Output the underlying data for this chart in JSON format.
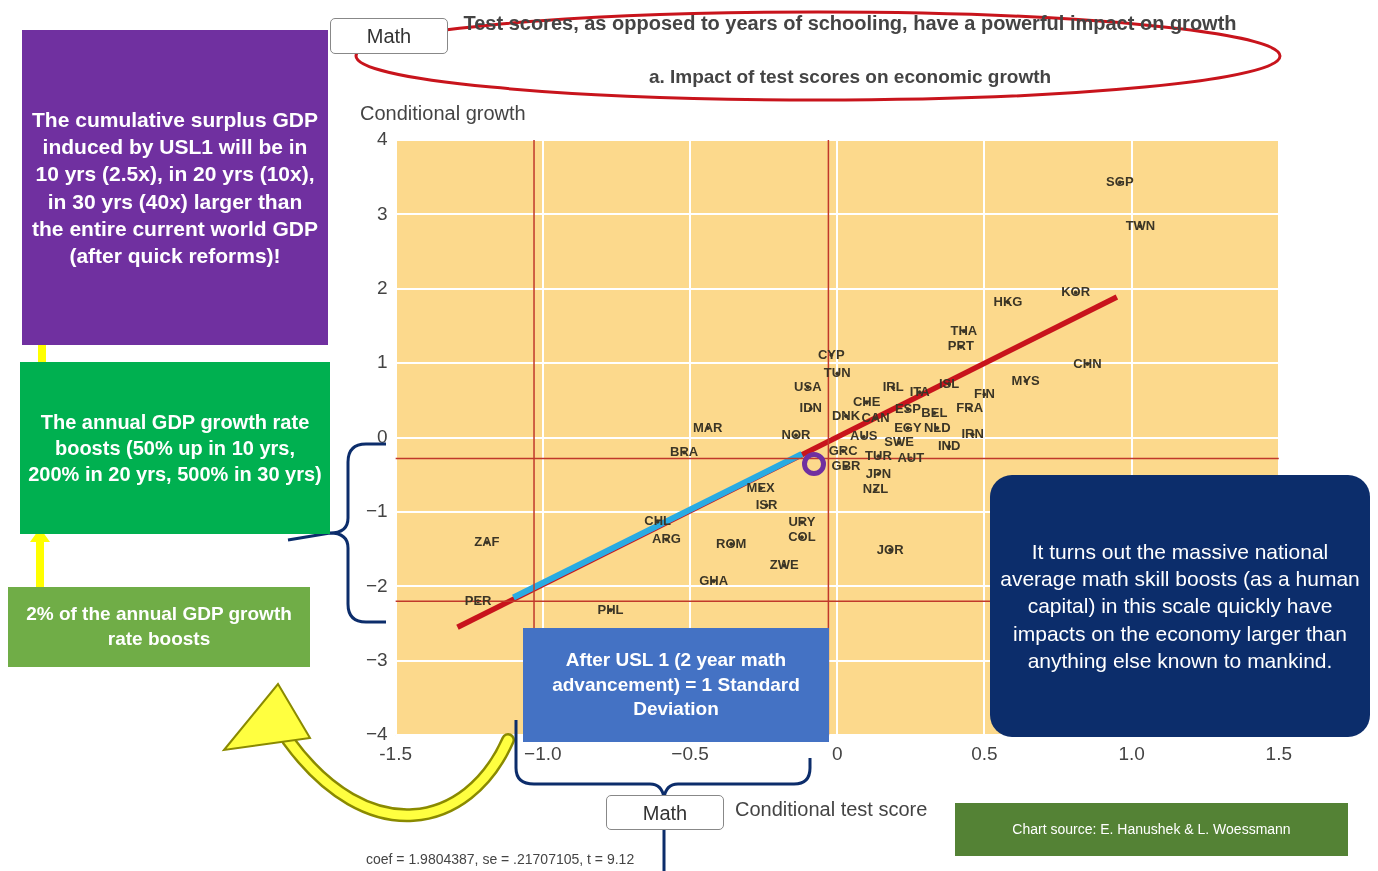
{
  "chart_data": {
    "type": "scatter",
    "title": "Test scores, as opposed to years of schooling, have a powerful impact on growth",
    "subtitle": "a. Impact of test scores on economic growth",
    "xlabel": "Conditional test score",
    "ylabel": "Conditional growth",
    "xlim": [
      -1.5,
      1.5
    ],
    "xticks": [
      -1.5,
      {
        "value": -1,
        "label": "−1.0"
      },
      {
        "value": -0.5,
        "label": "−0.5"
      },
      0,
      0.5,
      {
        "value": 1,
        "label": "1.0"
      },
      1.5
    ],
    "ylim": [
      -4,
      4
    ],
    "yticks": [
      {
        "value": -4,
        "label": "−4"
      },
      {
        "value": -3,
        "label": "−3"
      },
      {
        "value": -2,
        "label": "−2"
      },
      {
        "value": -1,
        "label": "−1"
      },
      0,
      1,
      2,
      3,
      4
    ],
    "grid": true,
    "legend": false,
    "series": [
      {
        "color": "#3b3526",
        "x": [
          0.96,
          1.03,
          0.81,
          0.58,
          0.43,
          0.42,
          0.85,
          0.64,
          -0.02,
          0.0,
          -0.1,
          -0.09,
          0.19,
          0.28,
          0.38,
          0.5,
          0.1,
          0.03,
          0.13,
          0.24,
          0.33,
          0.45,
          0.24,
          0.34,
          0.46,
          0.38,
          0.09,
          0.21,
          -0.44,
          -0.14,
          -0.52,
          0.02,
          0.03,
          0.14,
          0.25,
          0.14,
          0.13,
          -0.26,
          -0.24,
          -0.12,
          -0.12,
          -0.61,
          -0.58,
          -0.36,
          -0.18,
          -0.42,
          0.18,
          -1.19,
          -1.22,
          -0.77
        ],
        "values": [
          3.43,
          2.84,
          1.95,
          1.82,
          1.43,
          1.22,
          0.99,
          0.76,
          1.11,
          0.86,
          0.68,
          0.39,
          0.67,
          0.61,
          0.72,
          0.58,
          0.47,
          0.29,
          0.26,
          0.38,
          0.33,
          0.39,
          0.13,
          0.13,
          0.04,
          -0.12,
          0.01,
          -0.07,
          0.13,
          0.03,
          -0.2,
          -0.18,
          -0.39,
          -0.25,
          -0.28,
          -0.49,
          -0.7,
          -0.68,
          -0.91,
          -1.14,
          -1.34,
          -1.13,
          -1.37,
          -1.43,
          -1.72,
          -1.93,
          -1.51,
          -1.41,
          -2.2,
          -2.32
        ],
        "value_labels": [
          "SGP",
          "TWN",
          "KOR",
          "HKG",
          "THA",
          "PRT",
          "CHN",
          "MYS",
          "CYP",
          "TUN",
          "USA",
          "IDN",
          "IRL",
          "ITA",
          "ISL",
          "FIN",
          "CHE",
          "DNK",
          "CAN",
          "ESP",
          "BEL",
          "FRA",
          "EGY",
          "NLD",
          "IRN",
          "IND",
          "AUS",
          "SWE",
          "MAR",
          "NOR",
          "BRA",
          "GRC",
          "GBR",
          "TUR",
          "AUT",
          "JPN",
          "NZL",
          "MEX",
          "ISR",
          "URY",
          "COL",
          "CHL",
          "ARG",
          "ROM",
          "ZWE",
          "GHA",
          "JOR",
          "ZAF",
          "PER",
          "PHL"
        ]
      },
      {
        "type": "line",
        "color": "#c8141c",
        "x": [
          -1.29,
          0.95
        ],
        "values": [
          -2.55,
          1.89
        ]
      },
      {
        "type": "line",
        "color": "#29abe2",
        "x": [
          -1.1,
          -0.12
        ],
        "values": [
          -2.15,
          -0.22
        ]
      }
    ],
    "ref_lines": [
      {
        "axis": "y",
        "value": -0.28,
        "color": "#c0392b"
      },
      {
        "axis": "y",
        "value": -2.2,
        "color": "#c0392b"
      },
      {
        "axis": "x",
        "value": -1.03,
        "color": "#c0392b"
      },
      {
        "axis": "x",
        "value": -0.03,
        "color": "#c0392b"
      }
    ],
    "annotations": [
      "The cumulative surplus GDP induced by USL1 will be in 10 yrs (2.5x), in 20 yrs (10x), in 30 yrs (40x) larger than the entire current world GDP (after quick reforms)!",
      "The annual GDP growth rate boosts (50% up in 10 yrs, 200% in 20 yrs, 500% in 30 yrs)",
      "2% of the annual GDP growth rate boosts",
      "After USL 1 (2 year math advancement) = 1 Standard Deviation",
      "It turns out the massive national average math skill boosts (as a human capital) in this scale quickly have impacts on the economy larger than anything else known to mankind.",
      "Chart source: E. Hanushek & L. Woessmann",
      "coef = 1.9804387, se = .21707105, t = 9.12",
      "Math",
      "Math"
    ]
  }
}
